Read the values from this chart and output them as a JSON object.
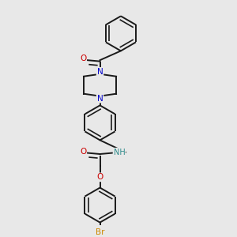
{
  "background_color": "#e8e8e8",
  "atom_colors": {
    "N": "#0000cc",
    "O": "#cc0000",
    "Br": "#cc8800",
    "NH": "#2e8b8b"
  },
  "bond_color": "#1a1a1a",
  "bond_lw": 1.4,
  "dbo": 0.018,
  "figsize": [
    3.0,
    3.0
  ],
  "dpi": 100,
  "xlim": [
    0.08,
    0.92
  ],
  "ylim": [
    0.02,
    0.98
  ]
}
